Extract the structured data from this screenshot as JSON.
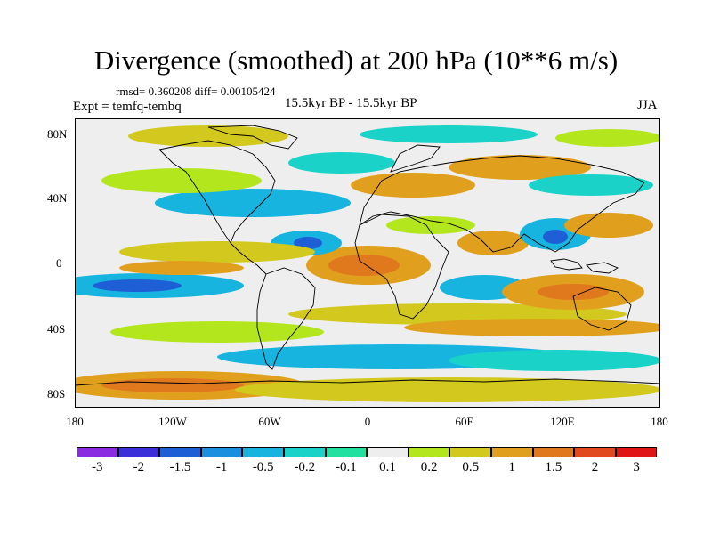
{
  "title": "Divergence (smoothed) at 200 hPa (10**6 m/s)",
  "stats": "rmsd= 0.360208 diff= 0.00105424",
  "experiment": "Expt = temfq-tembq",
  "period": "15.5kyr BP - 15.5kyr BP",
  "season": "JJA",
  "lat_labels": [
    "80N",
    "40N",
    "0",
    "40S",
    "80S"
  ],
  "lon_labels": [
    "180",
    "120W",
    "60W",
    "0",
    "60E",
    "120E",
    "180"
  ],
  "colorbar": {
    "labels": [
      "-3",
      "-2",
      "-1.5",
      "-1",
      "-0.5",
      "-0.2",
      "-0.1",
      "0.1",
      "0.2",
      "0.5",
      "1",
      "1.5",
      "2",
      "3"
    ],
    "colors": [
      "#8a2be2",
      "#3a2fd8",
      "#1f5fd6",
      "#1a8fe0",
      "#18b4e0",
      "#1ad2c8",
      "#22e0a0",
      "#eeeeee",
      "#b4e61e",
      "#d2c81e",
      "#e0a01e",
      "#e0781e",
      "#e04a1e",
      "#e01414"
    ]
  },
  "icons": {
    "map": "world-map-icon"
  }
}
